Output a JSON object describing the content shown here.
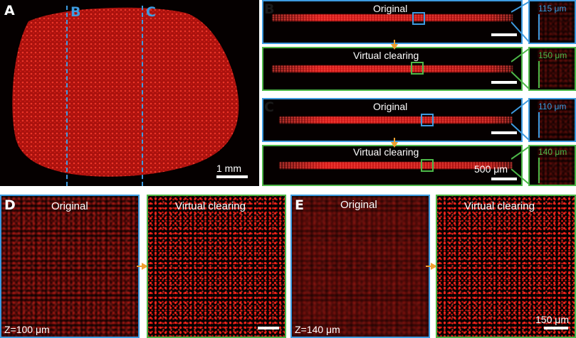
{
  "panel_a": {
    "letter": "A",
    "cut_b": "B",
    "cut_c": "C",
    "scale": "1 mm"
  },
  "panel_b": {
    "letter": "B",
    "original": "Original",
    "virtual": "Virtual clearing",
    "thick_original": "115 μm",
    "thick_virtual": "150 μm"
  },
  "panel_c": {
    "letter": "C",
    "original": "Original",
    "virtual": "Virtual clearing",
    "thick_original": "110 μm",
    "thick_virtual": "140 μm",
    "scale": "500 μm"
  },
  "panel_d": {
    "letter": "D",
    "original": "Original",
    "virtual": "Virtual clearing",
    "depth": "Z=100 μm"
  },
  "panel_e": {
    "letter": "E",
    "original": "Original",
    "virtual": "Virtual clearing",
    "depth": "Z=140 μm",
    "scale": "150 μm"
  },
  "colors": {
    "original_frame": "#3d9be0",
    "virtual_frame": "#4db848",
    "arrow": "#f0a030",
    "signal": "#e01a14"
  }
}
